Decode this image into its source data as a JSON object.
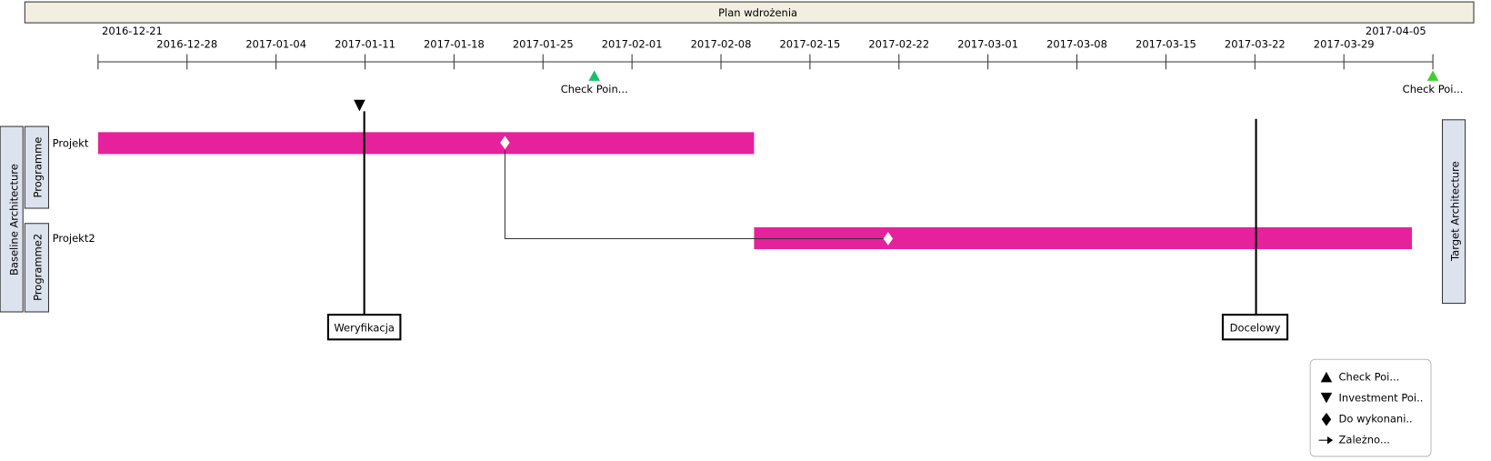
{
  "title": "Plan wdrożenia",
  "timeline": {
    "start": "2016-12-21",
    "end": "2017-04-05",
    "ticks": [
      "2016-12-28",
      "2017-01-04",
      "2017-01-11",
      "2017-01-18",
      "2017-01-25",
      "2017-02-01",
      "2017-02-08",
      "2017-02-15",
      "2017-02-22",
      "2017-03-01",
      "2017-03-08",
      "2017-03-15",
      "2017-03-22",
      "2017-03-29"
    ]
  },
  "milestones": [
    {
      "label": "Check Poin..."
    },
    {
      "label": "Check Poi..."
    }
  ],
  "lanes": {
    "left": "Baseline Architecture",
    "right": "Target Architecture"
  },
  "programmes": [
    {
      "label": "Programme",
      "project": "Projekt"
    },
    {
      "label": "Programme2",
      "project": "Projekt2"
    }
  ],
  "markers": [
    {
      "label": "Weryfikacja"
    },
    {
      "label": "Docelowy"
    }
  ],
  "legend": [
    "Check Poi...",
    "Investment Poi..",
    "Do wykonani..",
    "Zależno..."
  ]
}
